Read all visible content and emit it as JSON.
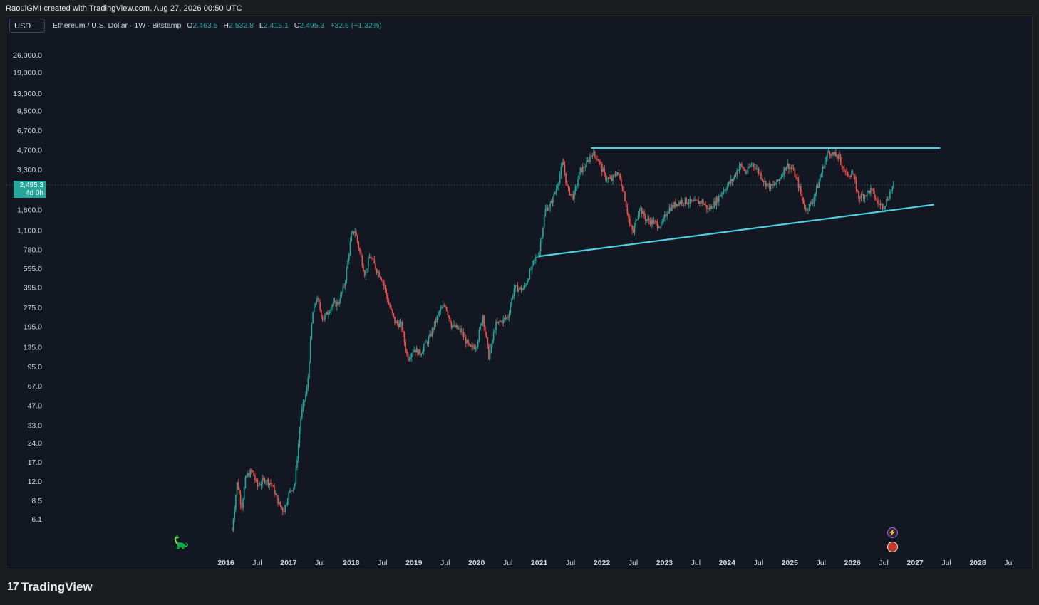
{
  "header": {
    "attribution": "RaoulGMI created with TradingView.com, Aug 27, 2026 00:50 UTC"
  },
  "toolbar": {
    "currency": "USD"
  },
  "legend": {
    "symbol": "Ethereum / U.S. Dollar · 1W · Bitstamp",
    "o_label": "O",
    "o_value": "2,463.5",
    "h_label": "H",
    "h_value": "2,532.8",
    "l_label": "L",
    "l_value": "2,415.1",
    "c_label": "C",
    "c_value": "2,495.3",
    "change": "+32.6 (+1.32%)"
  },
  "price_tag": {
    "price": "2,495.3",
    "countdown": "4d 0h"
  },
  "footer": {
    "logo_mark": "17",
    "brand": "TradingView"
  },
  "colors": {
    "up": "#26a69a",
    "down": "#ef5350",
    "trendline": "#4dd0e1",
    "background": "#131722",
    "grid_text": "#d1d4dc"
  },
  "chart_data": {
    "type": "candlestick",
    "scale": "log",
    "ylim": [
      4.5,
      34000
    ],
    "y_ticks": [
      "26,000.0",
      "19,000.0",
      "13,000.0",
      "9,500.0",
      "6,700.0",
      "4,700.0",
      "3,300.0",
      "1,600.0",
      "1,100.0",
      "780.0",
      "555.0",
      "395.0",
      "275.0",
      "195.0",
      "135.0",
      "95.0",
      "67.0",
      "47.0",
      "33.0",
      "24.0",
      "17.0",
      "12.0",
      "8.5",
      "6.1"
    ],
    "y_tick_values": [
      26000,
      19000,
      13000,
      9500,
      6700,
      4700,
      3300,
      1600,
      1100,
      780,
      555,
      395,
      275,
      195,
      135,
      95,
      67,
      47,
      33,
      24,
      17,
      12,
      8.5,
      6.1
    ],
    "x_ticks": [
      "2016",
      "Jul",
      "2017",
      "Jul",
      "2018",
      "Jul",
      "2019",
      "Jul",
      "2020",
      "Jul",
      "2021",
      "Jul",
      "2022",
      "Jul",
      "2023",
      "Jul",
      "2024",
      "Jul",
      "2025",
      "Jul",
      "2026",
      "Jul",
      "2027",
      "Jul",
      "2028",
      "Jul"
    ],
    "x_tick_values": [
      2016.0,
      2016.5,
      2017.0,
      2017.5,
      2018.0,
      2018.5,
      2019.0,
      2019.5,
      2020.0,
      2020.5,
      2021.0,
      2021.5,
      2022.0,
      2022.5,
      2023.0,
      2023.5,
      2024.0,
      2024.5,
      2025.0,
      2025.5,
      2026.0,
      2026.5,
      2027.0,
      2027.5,
      2028.0,
      2028.5
    ],
    "x_bold": [
      true,
      false,
      true,
      false,
      true,
      false,
      true,
      false,
      true,
      false,
      true,
      false,
      true,
      false,
      true,
      false,
      true,
      false,
      true,
      false,
      true,
      false,
      true,
      false,
      true,
      false
    ],
    "last_price": 2495.3,
    "close_path": [
      [
        2016.1,
        5.0
      ],
      [
        2016.18,
        12.0
      ],
      [
        2016.25,
        7.5
      ],
      [
        2016.32,
        13.0
      ],
      [
        2016.42,
        14.5
      ],
      [
        2016.5,
        11.0
      ],
      [
        2016.62,
        12.5
      ],
      [
        2016.72,
        11.5
      ],
      [
        2016.85,
        8.0
      ],
      [
        2016.92,
        7.0
      ],
      [
        2017.0,
        9.5
      ],
      [
        2017.1,
        11.5
      ],
      [
        2017.2,
        40.0
      ],
      [
        2017.3,
        65.0
      ],
      [
        2017.38,
        240.0
      ],
      [
        2017.45,
        330.0
      ],
      [
        2017.55,
        220.0
      ],
      [
        2017.7,
        290.0
      ],
      [
        2017.8,
        300.0
      ],
      [
        2017.9,
        430.0
      ],
      [
        2018.0,
        1000.0
      ],
      [
        2018.06,
        1100.0
      ],
      [
        2018.15,
        700.0
      ],
      [
        2018.22,
        500.0
      ],
      [
        2018.3,
        700.0
      ],
      [
        2018.4,
        550.0
      ],
      [
        2018.5,
        450.0
      ],
      [
        2018.6,
        290.0
      ],
      [
        2018.7,
        210.0
      ],
      [
        2018.8,
        200.0
      ],
      [
        2018.9,
        110.0
      ],
      [
        2019.0,
        130.0
      ],
      [
        2019.1,
        120.0
      ],
      [
        2019.25,
        160.0
      ],
      [
        2019.4,
        250.0
      ],
      [
        2019.5,
        290.0
      ],
      [
        2019.6,
        200.0
      ],
      [
        2019.75,
        180.0
      ],
      [
        2019.9,
        130.0
      ],
      [
        2020.0,
        140.0
      ],
      [
        2020.1,
        240.0
      ],
      [
        2020.2,
        110.0
      ],
      [
        2020.3,
        200.0
      ],
      [
        2020.5,
        230.0
      ],
      [
        2020.6,
        390.0
      ],
      [
        2020.75,
        380.0
      ],
      [
        2020.9,
        600.0
      ],
      [
        2021.0,
        750.0
      ],
      [
        2021.1,
        1600.0
      ],
      [
        2021.2,
        1800.0
      ],
      [
        2021.3,
        2600.0
      ],
      [
        2021.38,
        3800.0
      ],
      [
        2021.45,
        2300.0
      ],
      [
        2021.55,
        2000.0
      ],
      [
        2021.65,
        3200.0
      ],
      [
        2021.75,
        3600.0
      ],
      [
        2021.85,
        4500.0
      ],
      [
        2021.95,
        3900.0
      ],
      [
        2022.05,
        2900.0
      ],
      [
        2022.15,
        2700.0
      ],
      [
        2022.25,
        3200.0
      ],
      [
        2022.35,
        2200.0
      ],
      [
        2022.45,
        1200.0
      ],
      [
        2022.5,
        1050.0
      ],
      [
        2022.6,
        1700.0
      ],
      [
        2022.7,
        1350.0
      ],
      [
        2022.85,
        1250.0
      ],
      [
        2022.95,
        1200.0
      ],
      [
        2023.05,
        1600.0
      ],
      [
        2023.2,
        1800.0
      ],
      [
        2023.3,
        1900.0
      ],
      [
        2023.45,
        1800.0
      ],
      [
        2023.6,
        1850.0
      ],
      [
        2023.7,
        1600.0
      ],
      [
        2023.8,
        1800.0
      ],
      [
        2023.95,
        2300.0
      ],
      [
        2024.1,
        2800.0
      ],
      [
        2024.2,
        3600.0
      ],
      [
        2024.3,
        3100.0
      ],
      [
        2024.4,
        3700.0
      ],
      [
        2024.5,
        3200.0
      ],
      [
        2024.6,
        2600.0
      ],
      [
        2024.7,
        2400.0
      ],
      [
        2024.8,
        2600.0
      ],
      [
        2024.95,
        3600.0
      ],
      [
        2025.05,
        3300.0
      ],
      [
        2025.15,
        2400.0
      ],
      [
        2025.25,
        1600.0
      ],
      [
        2025.35,
        1800.0
      ],
      [
        2025.45,
        2500.0
      ],
      [
        2025.55,
        3700.0
      ],
      [
        2025.62,
        4600.0
      ],
      [
        2025.7,
        4300.0
      ],
      [
        2025.8,
        4000.0
      ],
      [
        2025.9,
        3000.0
      ],
      [
        2026.0,
        3100.0
      ],
      [
        2026.1,
        2000.0
      ],
      [
        2026.2,
        2100.0
      ],
      [
        2026.3,
        2300.0
      ],
      [
        2026.4,
        1800.0
      ],
      [
        2026.5,
        1700.0
      ],
      [
        2026.55,
        1900.0
      ],
      [
        2026.62,
        2300.0
      ],
      [
        2026.66,
        2495.3
      ]
    ],
    "trendlines": [
      {
        "name": "resistance",
        "from": [
          2021.83,
          4850.0
        ],
        "to": [
          2027.4,
          4850.0
        ]
      },
      {
        "name": "support",
        "from": [
          2021.0,
          690.0
        ],
        "to": [
          2027.3,
          1750.0
        ]
      }
    ]
  }
}
